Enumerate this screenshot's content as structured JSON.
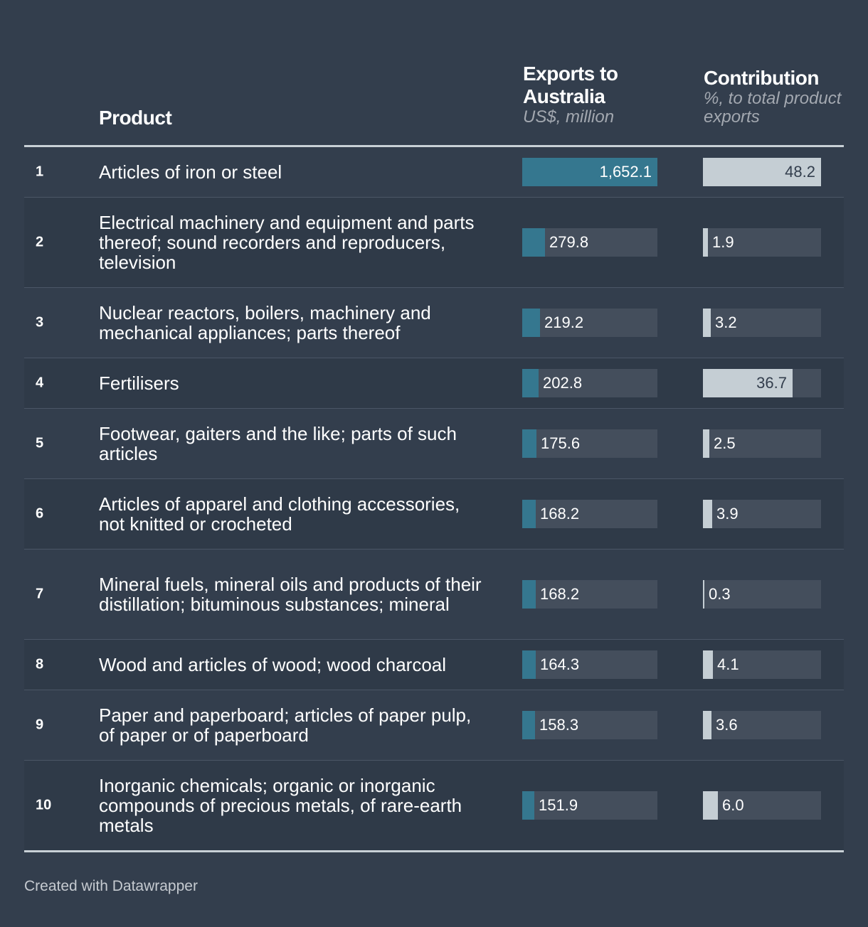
{
  "header": {
    "product": "Product",
    "exports_title": "Exports to Australia",
    "exports_sub": "US$, million",
    "contrib_title": "Contribution",
    "contrib_sub": "%, to total product exports"
  },
  "colors": {
    "exports_bar": "#35778f",
    "contrib_bar": "#c5ced4",
    "bar_track": "#444e5c",
    "background": "#333e4d"
  },
  "chart_data": {
    "type": "table",
    "columns": [
      "Product",
      "Exports to Australia",
      "Contribution"
    ],
    "exports_max": 1652.1,
    "contrib_max": 48.2,
    "rows": [
      {
        "rank": "1",
        "product": "Articles of iron or steel",
        "exports": 1652.1,
        "exports_label": "1,652.1",
        "contrib": 48.2,
        "contrib_label": "48.2"
      },
      {
        "rank": "2",
        "product": "Electrical machinery and equipment and parts thereof; sound recorders and reproducers, television",
        "exports": 279.8,
        "exports_label": "279.8",
        "contrib": 1.9,
        "contrib_label": "1.9"
      },
      {
        "rank": "3",
        "product": "Nuclear reactors, boilers, machinery and mechanical appliances; parts thereof",
        "exports": 219.2,
        "exports_label": "219.2",
        "contrib": 3.2,
        "contrib_label": "3.2"
      },
      {
        "rank": "4",
        "product": "Fertilisers",
        "exports": 202.8,
        "exports_label": "202.8",
        "contrib": 36.7,
        "contrib_label": "36.7"
      },
      {
        "rank": "5",
        "product": "Footwear, gaiters and the like; parts of such articles",
        "exports": 175.6,
        "exports_label": "175.6",
        "contrib": 2.5,
        "contrib_label": "2.5"
      },
      {
        "rank": "6",
        "product": "Articles of apparel and clothing accessories, not knitted or crocheted",
        "exports": 168.2,
        "exports_label": "168.2",
        "contrib": 3.9,
        "contrib_label": "3.9"
      },
      {
        "rank": "7",
        "product": "Mineral fuels, mineral oils and products of their distillation; bituminous substances; mineral",
        "exports": 168.2,
        "exports_label": "168.2",
        "contrib": 0.3,
        "contrib_label": "0.3"
      },
      {
        "rank": "8",
        "product": "Wood and articles of wood; wood charcoal",
        "exports": 164.3,
        "exports_label": "164.3",
        "contrib": 4.1,
        "contrib_label": "4.1"
      },
      {
        "rank": "9",
        "product": "Paper and paperboard; articles of paper pulp, of paper or of paperboard",
        "exports": 158.3,
        "exports_label": "158.3",
        "contrib": 3.6,
        "contrib_label": "3.6"
      },
      {
        "rank": "10",
        "product": "Inorganic chemicals; organic or inorganic compounds of precious metals, of rare-earth metals",
        "exports": 151.9,
        "exports_label": "151.9",
        "contrib": 6.0,
        "contrib_label": "6.0"
      }
    ]
  },
  "footer": {
    "credit": "Created with Datawrapper"
  }
}
